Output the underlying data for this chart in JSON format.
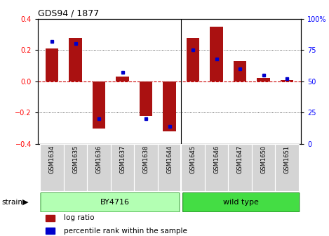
{
  "title": "GDS94 / 1877",
  "samples": [
    "GSM1634",
    "GSM1635",
    "GSM1636",
    "GSM1637",
    "GSM1638",
    "GSM1644",
    "GSM1645",
    "GSM1646",
    "GSM1647",
    "GSM1650",
    "GSM1651"
  ],
  "log_ratio": [
    0.21,
    0.28,
    -0.3,
    0.03,
    -0.22,
    -0.32,
    0.28,
    0.35,
    0.13,
    0.02,
    0.01
  ],
  "percentile_rank": [
    82,
    80,
    20,
    57,
    20,
    14,
    75,
    68,
    60,
    55,
    52
  ],
  "group_by4716_indices": [
    0,
    1,
    2,
    3,
    4,
    5
  ],
  "group_wt_indices": [
    6,
    7,
    8,
    9,
    10
  ],
  "group_labels": [
    "BY4716",
    "wild type"
  ],
  "group_colors": [
    "#b3ffb3",
    "#44dd44"
  ],
  "bar_color": "#aa1111",
  "dot_color": "#0000cc",
  "ylim_left": [
    -0.4,
    0.4
  ],
  "ylim_right": [
    0,
    100
  ],
  "yticks_left": [
    -0.4,
    -0.2,
    0.0,
    0.2,
    0.4
  ],
  "yticks_right": [
    0,
    25,
    50,
    75,
    100
  ],
  "background_color": "#ffffff",
  "grid_color": "#000000",
  "zero_line_color": "#cc0000",
  "strain_label": "strain",
  "legend_log_ratio": "log ratio",
  "legend_percentile": "percentile rank within the sample",
  "sep_index": 5.5
}
